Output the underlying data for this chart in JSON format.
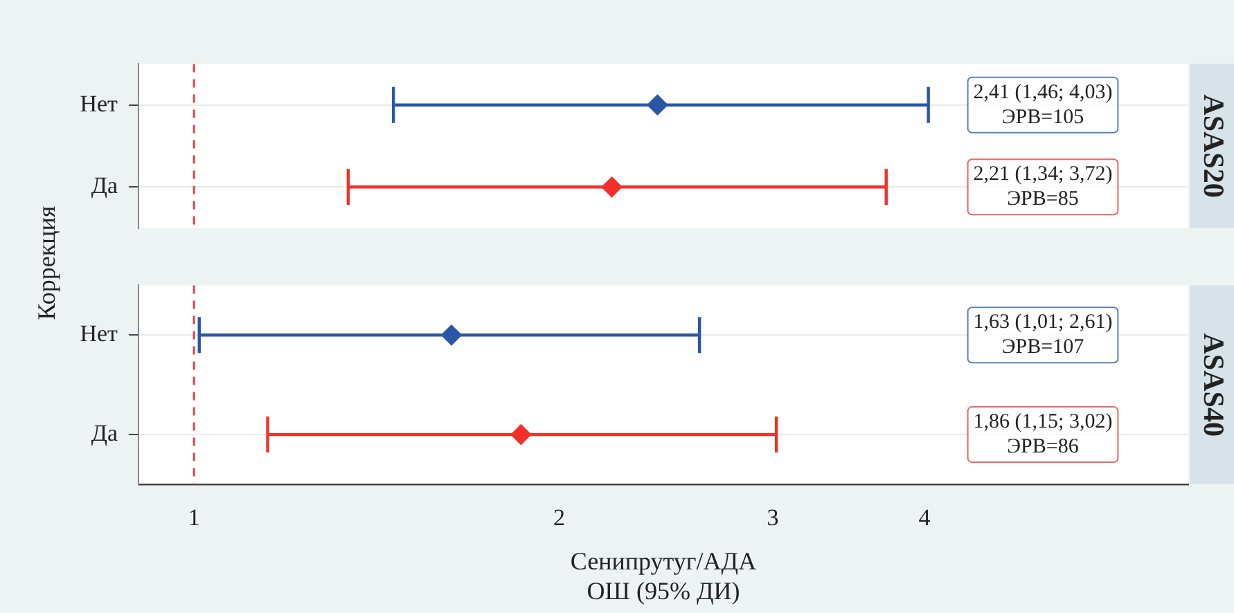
{
  "chart_data": [
    {
      "type": "scatter",
      "title": "ASAS20",
      "ylabel": "Коррекция",
      "orientation": "horizontal",
      "categories": [
        "Нет",
        "Да"
      ],
      "values": [
        2.41,
        2.21
      ],
      "errors": [
        [
          1.46,
          4.03
        ],
        [
          1.34,
          3.72
        ]
      ],
      "colors": [
        "#2a56a8",
        "#f2302a"
      ],
      "annotations": [
        "2,41 (1,46; 4,03)\nЭРВ=105",
        "2,21 (1,34; 3,72)\nЭРВ=85"
      ],
      "marker": "diamond",
      "log": "x",
      "xlim": [
        0.9,
        6.6
      ],
      "xticks": [
        1,
        2,
        3,
        4
      ],
      "ref_lines": [
        {
          "axis": "x",
          "value": 1,
          "color": "#e8404a",
          "line_style": "dashed"
        }
      ],
      "grid": "y",
      "tick_labels": "y"
    },
    {
      "type": "scatter",
      "title": "ASAS40",
      "xlabel": "Сенипрутуг/АДА\nОШ (95% ДИ)",
      "orientation": "horizontal",
      "categories": [
        "Нет",
        "Да"
      ],
      "values": [
        1.63,
        1.86
      ],
      "errors": [
        [
          1.01,
          2.61
        ],
        [
          1.15,
          3.02
        ]
      ],
      "colors": [
        "#2a56a8",
        "#f2302a"
      ],
      "annotations": [
        "1,63 (1,01; 2,61)\nЭРВ=107",
        "1,86 (1,15; 3,02)\nЭРВ=86"
      ],
      "marker": "diamond",
      "log": "x",
      "xlim": [
        0.9,
        6.6
      ],
      "xticks": [
        1,
        2,
        3,
        4
      ],
      "ref_lines": [
        {
          "axis": "x",
          "value": 1,
          "color": "#e8404a",
          "line_style": "dashed"
        }
      ],
      "grid": "y"
    }
  ]
}
